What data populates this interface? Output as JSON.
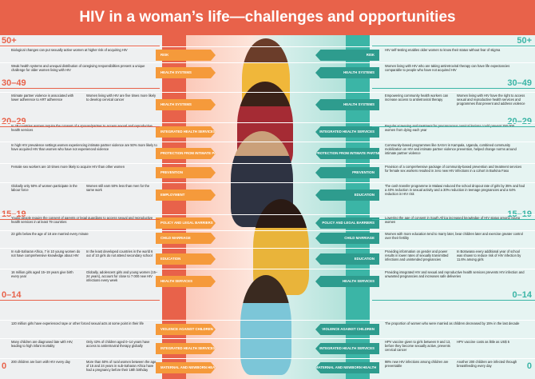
{
  "title": "HIV in a woman’s life—challenges and opportunities",
  "ages_left": [
    "50+",
    "30–49",
    "20–29",
    "15–19",
    "0–14",
    "0"
  ],
  "ages_right": [
    "50+",
    "30–49",
    "20–29",
    "15–19",
    "0–14",
    "0"
  ],
  "rows": [
    {
      "tag_l": "RISK",
      "tag_r": "RISK",
      "left": [
        "Biological changes can put sexually active women at higher risk of acquiring HIV"
      ],
      "right": [
        "HIV self-testing enables older women to know their status without fear of stigma"
      ]
    },
    {
      "tag_l": "HEALTH SYSTEMS",
      "tag_r": "HEALTH SYSTEMS",
      "left": [
        "Weak health systems and unequal distribution of caregiving responsibilities present a unique challenge for older women living with HIV"
      ],
      "right": [
        "Women living with HIV who are taking antiretroviral therapy can have life expectancies comparable to people who have not acquired HIV"
      ]
    },
    {
      "tag_l": "HEALTH SYSTEMS",
      "tag_r": "HEALTH SYSTEMS",
      "left": [
        "Intimate partner violence is associated with lower adherence to ART adherence",
        "Women living with HIV are five times more likely to develop cervical cancer"
      ],
      "right": [
        "Empowering community health workers can increase access to antiretroviral therapy",
        "Women living with HIV have the right to access sexual and reproductive health services and programmes that prevent and address violence"
      ]
    },
    {
      "tag_l": "INTEGRATED HEALTH SERVICES",
      "tag_r": "INTEGRATED HEALTH SERVICES",
      "left": [
        "In 29 countries women require the consent of a spouse/partner to access sexual and reproductive health services"
      ],
      "right": [
        "Regular screening and treatment for precancerous cervical lesions could prevent 250 000 women from dying each year"
      ]
    },
    {
      "tag_l": "PROTECTION FROM INTIMATE PARTNER VIOLENCE",
      "tag_r": "PROTECTION FROM INTIMATE PARTNER VIOLENCE",
      "left": [
        "In high HIV prevalence settings women experiencing intimate partner violence are 50% more likely to have acquired HIV than women who have not experienced violence"
      ],
      "right": [
        "Community-based programmes like SASA! in Kampala, Uganda, combined community mobilization on HIV and intimate partner violence prevention, helped change norms around intimate partner violence"
      ]
    },
    {
      "tag_l": "PREVENTION",
      "tag_r": "PREVENTION",
      "left": [
        "Female sex workers are 10 times more likely to acquire HIV than other women"
      ],
      "right": [
        "Provision of a comprehensive package of community-based prevention and treatment services for female sex workers resulted in zero new HIV infections in a cohort in Burkina Faso"
      ]
    },
    {
      "tag_l": "EMPLOYMENT",
      "tag_r": "EDUCATION",
      "left": [
        "Globally only 50% of women participate in the labour force",
        "Women still earn 50% less than men for the same work"
      ],
      "right": [
        "The cash transfer programme in Malawi reduced the school dropout rate of girls by 35% and had a 40% reduction in sexual activity and a 30% reduction in teenage pregnancies and a 64% reduction in HIV risk"
      ]
    },
    {
      "tag_l": "POLICY AND LEGAL BARRIERS",
      "tag_r": "POLICY AND LEGAL BARRIERS",
      "left": [
        "Young people require the consent of parents or legal guardians to access sexual and reproductive health services in at least 79 countries"
      ],
      "right": [
        "Lowering the age of consent in South Africa increased knowledge of HIV status among young women"
      ]
    },
    {
      "tag_l": "CHILD MARRIAGE",
      "tag_r": "CHILD MARRIAGE",
      "left": [
        "23 girls below the age of 18 are married every minute"
      ],
      "right": [
        "Women with more education tend to marry later, bear children later and exercise greater control over their fertility"
      ]
    },
    {
      "tag_l": "EDUCATION",
      "tag_r": "EDUCATION",
      "left": [
        "In sub-Saharan Africa, 7 in 10 young women do not have comprehensive knowledge about HIV",
        "In the least developed countries in the world 6 out of 10 girls do not attend secondary school"
      ],
      "right": [
        "Providing information on gender and power results in lower rates of sexually transmitted infections and unintended pregnancies",
        "In Botswana every additional year of school was shown to reduce risk of HIV infection by 11.6% among girls"
      ]
    },
    {
      "tag_l": "HEALTH SERVICES",
      "tag_r": "HEALTH SERVICES",
      "left": [
        "16 million girls aged 15–19 years give birth every year",
        "Globally, adolescent girls and young women (15–24 years), account for close to 7 000 new HIV infections every week"
      ],
      "right": [
        "Providing integrated HIV and sexual and reproductive health services prevents HIV infection and unwanted pregnancies and increases safe deliveries"
      ]
    },
    {
      "tag_l": "VIOLENCE AGAINST CHILDREN",
      "tag_r": "VIOLENCE AGAINST CHILDREN",
      "left": [
        "120 million girls have experienced rape or other forced sexual acts at some point in their life"
      ],
      "right": [
        "The proportion of women who were married as children decreased by 15% in the last decade"
      ]
    },
    {
      "tag_l": "INTEGRATED HEALTH SERVICES",
      "tag_r": "INTEGRATED HEALTH SERVICES",
      "left": [
        "Many children are diagnosed late with HIV, leading to high infant mortality",
        "Only 43% of children aged 0–14 years have access to antiretroviral therapy globally"
      ],
      "right": [
        "HPV vaccine given to girls between 9 and 13, before they become sexually active, prevents cervical cancer",
        "HPV vaccine costs as little as US$ 5"
      ]
    },
    {
      "tag_l": "MATERNAL AND NEWBORN HEALTH",
      "tag_r": "MATERNAL AND NEWBORN HEALTH",
      "left": [
        "200 children are born with HIV every day",
        "More than 50% of rural women between the age of 15 and 24 years in sub-Saharan Africa have had a pregnancy before their 18th birthday"
      ],
      "right": [
        "98% new HIV infections among children are preventable",
        "Another 200 children are infected through breastfeeding every day"
      ]
    }
  ]
}
